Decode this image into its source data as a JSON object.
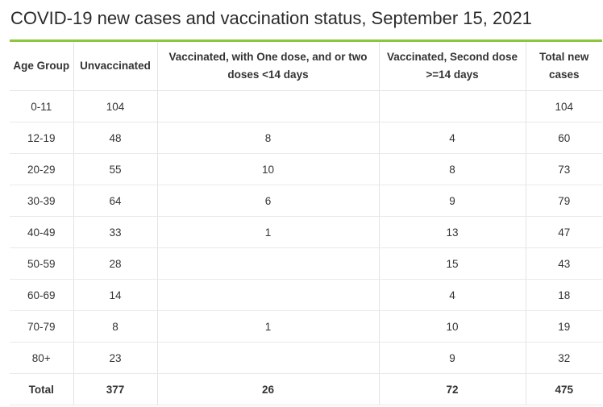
{
  "title": "COVID-19 new cases and vaccination status, September 15, 2021",
  "colors": {
    "accent_rule": "#8cc63f",
    "grid": "#e3e3e3"
  },
  "table": {
    "headers": [
      "Age Group",
      "Unvaccinated",
      "Vaccinated, with One dose, and or two doses <14 days",
      "Vaccinated, Second dose >=14 days",
      "Total new cases"
    ],
    "rows": [
      [
        "0-11",
        "104",
        "",
        "",
        "104"
      ],
      [
        "12-19",
        "48",
        "8",
        "4",
        "60"
      ],
      [
        "20-29",
        "55",
        "10",
        "8",
        "73"
      ],
      [
        "30-39",
        "64",
        "6",
        "9",
        "79"
      ],
      [
        "40-49",
        "33",
        "1",
        "13",
        "47"
      ],
      [
        "50-59",
        "28",
        "",
        "15",
        "43"
      ],
      [
        "60-69",
        "14",
        "",
        "4",
        "18"
      ],
      [
        "70-79",
        "8",
        "1",
        "10",
        "19"
      ],
      [
        "80+",
        "23",
        "",
        "9",
        "32"
      ]
    ],
    "total": [
      "Total",
      "377",
      "26",
      "72",
      "475"
    ]
  }
}
